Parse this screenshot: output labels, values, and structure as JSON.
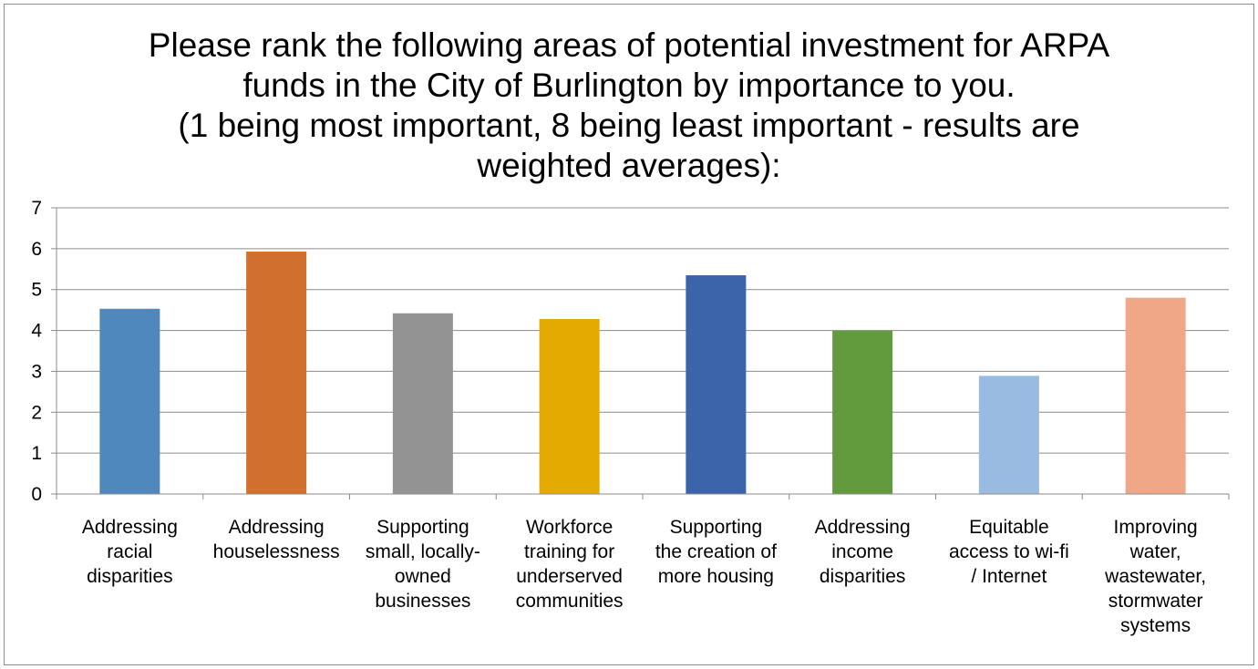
{
  "chart_data": {
    "type": "bar",
    "title_lines": [
      "Please rank the following areas of potential investment for ARPA",
      "funds in the City of Burlington by importance to you.",
      "(1 being most important, 8 being least important - results are",
      "weighted averages):"
    ],
    "xlabel": "",
    "ylabel": "",
    "ylim": [
      0,
      7
    ],
    "yticks": [
      "0",
      "1",
      "2",
      "3",
      "4",
      "5",
      "6",
      "7"
    ],
    "grid": true,
    "legend": "none",
    "categories": [
      [
        "Addressing",
        "racial",
        "disparities"
      ],
      [
        "Addressing",
        "houselessness"
      ],
      [
        "Supporting",
        "small, locally-",
        "owned",
        "businesses"
      ],
      [
        "Workforce",
        "training for",
        "underserved",
        "communities"
      ],
      [
        "Supporting",
        "the creation of",
        "more housing"
      ],
      [
        "Addressing",
        "income",
        "disparities"
      ],
      [
        "Equitable",
        "access to wi-fi",
        "/ Internet"
      ],
      [
        "Improving",
        "water,",
        "wastewater,",
        "stormwater",
        "systems"
      ]
    ],
    "values": [
      4.53,
      5.93,
      4.42,
      4.28,
      5.35,
      4.0,
      2.89,
      4.8
    ],
    "colors": [
      "#4f88bd",
      "#d16f2d",
      "#939393",
      "#e4aa02",
      "#3b64ab",
      "#629b3d",
      "#9abbe1",
      "#f0a788"
    ]
  }
}
